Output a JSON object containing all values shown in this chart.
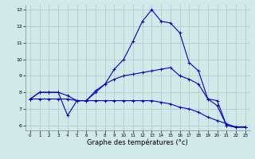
{
  "xlabel": "Graphe des températures (°c)",
  "background_color": "#d0eaea",
  "grid_color": "#a8c8c8",
  "line_color": "#0000cc",
  "x": [
    0,
    1,
    2,
    3,
    4,
    5,
    6,
    7,
    8,
    9,
    10,
    11,
    12,
    13,
    14,
    15,
    16,
    17,
    18,
    19,
    20,
    21,
    22,
    23
  ],
  "line1": [
    7.6,
    8.0,
    8.0,
    8.0,
    6.6,
    7.5,
    7.5,
    8.1,
    8.5,
    9.4,
    10.0,
    11.1,
    12.3,
    13.0,
    12.3,
    12.2,
    11.6,
    9.8,
    9.3,
    7.6,
    7.2,
    6.0,
    5.9,
    5.9
  ],
  "line2": [
    7.6,
    8.0,
    8.0,
    8.0,
    7.8,
    7.5,
    7.5,
    8.0,
    8.5,
    8.8,
    9.0,
    9.1,
    9.2,
    9.3,
    9.4,
    9.5,
    9.0,
    8.8,
    8.5,
    7.6,
    7.5,
    6.0,
    5.9,
    5.9
  ],
  "line3": [
    7.6,
    7.6,
    7.6,
    7.6,
    7.6,
    7.5,
    7.5,
    7.5,
    7.5,
    7.5,
    7.5,
    7.5,
    7.5,
    7.5,
    7.4,
    7.3,
    7.1,
    7.0,
    6.8,
    6.5,
    6.3,
    6.1,
    5.9,
    5.9
  ],
  "ylim": [
    5.7,
    13.3
  ],
  "xlim": [
    -0.5,
    23.5
  ],
  "yticks": [
    6,
    7,
    8,
    9,
    10,
    11,
    12,
    13
  ],
  "xticks": [
    0,
    1,
    2,
    3,
    4,
    5,
    6,
    7,
    8,
    9,
    10,
    11,
    12,
    13,
    14,
    15,
    16,
    17,
    18,
    19,
    20,
    21,
    22,
    23
  ],
  "lw": 0.8,
  "marker_size": 2.5,
  "marker_ew": 0.7,
  "xtick_fontsize": 4.0,
  "ytick_fontsize": 4.5,
  "xlabel_fontsize": 6.0
}
